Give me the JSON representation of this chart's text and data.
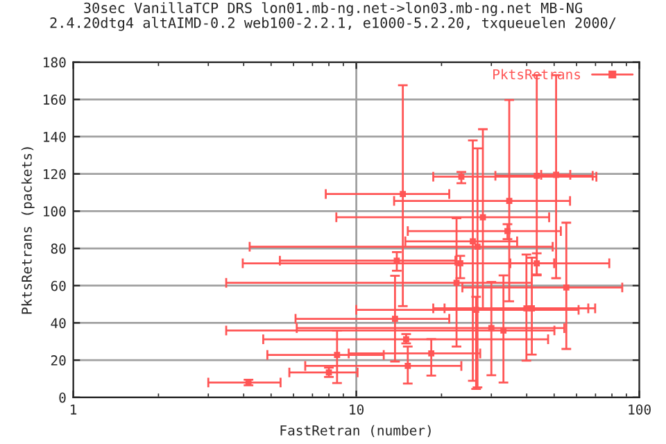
{
  "chart_data": {
    "type": "scatter",
    "title": "30sec VanillaTCP DRS lon01.mb-ng.net->lon03.mb-ng.net MB-NG\n2.4.20dtg4 altAIMD-0.2 web100-2.2.1, e1000-5.2.20, txqueuelen 2000/",
    "xlabel": "FastRetran (number)",
    "ylabel": "PktsRetrans (packets)",
    "log": "x",
    "xlim": [
      1,
      100
    ],
    "xticks": [
      1,
      10,
      100
    ],
    "ylim": [
      0,
      180
    ],
    "yticks": [
      0,
      20,
      40,
      60,
      80,
      100,
      120,
      140,
      160,
      180
    ],
    "grid": true,
    "legend": "top right",
    "marker": "square",
    "series": [
      {
        "name": "PktsRetrans",
        "color": "#ff5555",
        "x": [
          4.16,
          8.0,
          8.55,
          15.2,
          18.4,
          13.7,
          22.6,
          23.3,
          13.9,
          43.4,
          55.2,
          39.9,
          41.7,
          30.0,
          33.1,
          26.5,
          14.6,
          34.7,
          23.5,
          43.4,
          50.8,
          28.0,
          34.2,
          25.8,
          26.8,
          15.0
        ],
        "values": [
          8,
          13.4,
          22.8,
          16.9,
          23.6,
          42.2,
          61.5,
          72,
          73.4,
          72,
          59,
          47.8,
          47.8,
          37.2,
          35.9,
          47,
          109.2,
          105.5,
          118.5,
          119,
          119.5,
          96.7,
          89.3,
          83.8,
          80.9,
          31.2
        ],
        "xerrors": [
          [
            3.0,
            5.4
          ],
          [
            5.8,
            10.1
          ],
          [
            4.85,
            12.5
          ],
          [
            6.6,
            23.5
          ],
          [
            9.4,
            27.4
          ],
          [
            6.1,
            21.3
          ],
          [
            3.47,
            41.7
          ],
          [
            3.97,
            78.3
          ],
          [
            5.37,
            22.4
          ],
          [
            35,
            50
          ],
          [
            23.7,
            87
          ],
          [
            18.7,
            69.8
          ],
          [
            20.5,
            66
          ],
          [
            6.16,
            54.3
          ],
          [
            3.47,
            50.1
          ],
          [
            10,
            61
          ],
          [
            7.8,
            21.3
          ],
          [
            13.6,
            56.9
          ],
          [
            18.7,
            70.5
          ],
          [
            31,
            68.4
          ],
          [
            45,
            57
          ],
          [
            8.5,
            48
          ],
          [
            15.2,
            52.8
          ],
          [
            14.9,
            37
          ],
          [
            4.2,
            49.4
          ],
          [
            4.69,
            47.6
          ]
        ],
        "errors": [
          [
            6.5,
            9.5
          ],
          [
            11,
            16
          ],
          [
            7.7,
            35.9
          ],
          [
            7.4,
            27.3
          ],
          [
            11.7,
            31.3
          ],
          [
            19.3,
            65.3
          ],
          [
            27.3,
            96.2
          ],
          [
            64,
            76
          ],
          [
            68,
            78
          ],
          [
            65.5,
            77.4
          ],
          [
            26,
            93.8
          ],
          [
            19.7,
            76.7
          ],
          [
            23,
            75
          ],
          [
            11.9,
            62
          ],
          [
            8,
            65.5
          ],
          [
            4.5,
            54
          ],
          [
            49,
            167.6
          ],
          [
            51.6,
            159.7
          ],
          [
            115,
            121
          ],
          [
            66,
            173
          ],
          [
            64,
            173
          ],
          [
            47.8,
            144
          ],
          [
            85,
            93
          ],
          [
            8.9,
            138
          ],
          [
            5.4,
            133.7
          ],
          [
            29,
            34
          ]
        ]
      }
    ]
  }
}
